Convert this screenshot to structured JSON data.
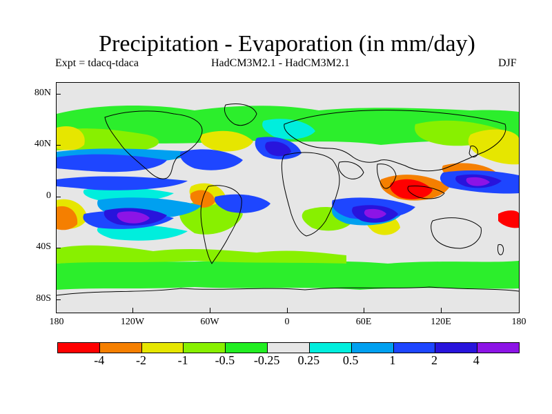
{
  "header": {
    "title": "Precipitation - Evaporation (in mm/day)",
    "experiment": "Expt = tdacq-tdaca",
    "models": "HadCM3M2.1 - HadCM3M2.1",
    "season": "DJF"
  },
  "map": {
    "lat_ticks": [
      "80N",
      "40N",
      "0",
      "40S",
      "80S"
    ],
    "lon_ticks": [
      "180",
      "120W",
      "60W",
      "0",
      "60E",
      "120E",
      "180"
    ],
    "background_color": "#e6e6e6"
  },
  "colorbar": {
    "colors": [
      "#ff0000",
      "#f57f00",
      "#e6e600",
      "#88f000",
      "#22ee22",
      "#e6e6e6",
      "#00eedd",
      "#00a0f0",
      "#1e46ff",
      "#2814dc",
      "#8c14e6"
    ],
    "labels": [
      "-4",
      "-2",
      "-1",
      "-0.5",
      "-0.25",
      "0.25",
      "0.5",
      "1",
      "2",
      "4"
    ]
  }
}
